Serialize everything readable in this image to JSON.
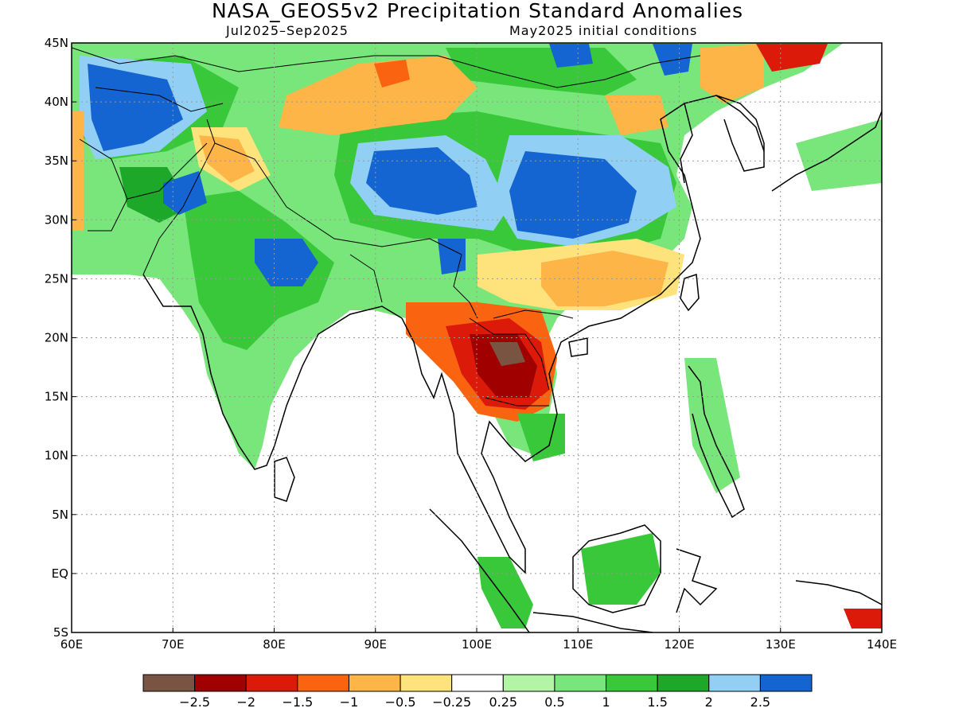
{
  "title": "NASA_GEOS5v2 Precipitation Standard Anomalies",
  "subtitle_left": "Jul2025–Sep2025",
  "subtitle_right": "May2025 initial conditions",
  "map": {
    "lon_range": [
      60,
      140
    ],
    "lat_range": [
      -5,
      45
    ],
    "lon_ticks": [
      "60E",
      "70E",
      "80E",
      "90E",
      "100E",
      "110E",
      "120E",
      "130E",
      "140E"
    ],
    "lat_ticks": [
      "45N",
      "40N",
      "35N",
      "30N",
      "25N",
      "20N",
      "15N",
      "10N",
      "5N",
      "EQ",
      "5S"
    ],
    "grid": "dotted"
  },
  "colorbar": {
    "colors": [
      "#7a5443",
      "#a10000",
      "#dc1a0a",
      "#fa6411",
      "#fdb547",
      "#fee27c",
      "#ffffff",
      "#b2f5a4",
      "#78e67a",
      "#38c83a",
      "#1ea82a",
      "#92cff5",
      "#1464d2"
    ],
    "labels": [
      "−2.5",
      "−2",
      "−1.5",
      "−1",
      "−0.5",
      "−0.25",
      "0.25",
      "0.5",
      "1",
      "1.5",
      "2",
      "2.5"
    ]
  },
  "regions": [
    {
      "name": "positive-anomaly-india",
      "value": 1.2
    },
    {
      "name": "positive-anomaly-tibet-china",
      "value": 2.5
    },
    {
      "name": "negative-anomaly-thailand-laos",
      "value": -2.5
    },
    {
      "name": "negative-anomaly-south-china",
      "value": -1
    },
    {
      "name": "negative-anomaly-north-china",
      "value": -0.75
    }
  ]
}
